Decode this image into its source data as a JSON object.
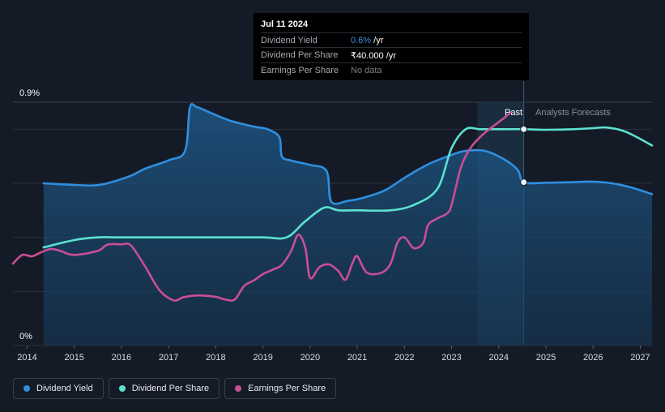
{
  "chart_data": {
    "type": "line",
    "y_axis": {
      "min_label": "0%",
      "max_label": "0.9%",
      "ylim": [
        0,
        0.9
      ]
    },
    "x_axis": {
      "ticks": [
        "2014",
        "2015",
        "2016",
        "2017",
        "2018",
        "2019",
        "2020",
        "2021",
        "2022",
        "2023",
        "2024",
        "2025",
        "2026",
        "2027"
      ],
      "xlim": [
        2013.7,
        2027.25
      ]
    },
    "regions": {
      "past_label": "Past",
      "forecast_label": "Analysts Forecasts",
      "past_shade_start": 2023.55,
      "divider_x": 2024.53
    },
    "hover_x": 2024.53,
    "series": [
      {
        "name": "Dividend Yield",
        "color": "#2f8fdf",
        "area": true,
        "points": [
          [
            2014.35,
            0.6
          ],
          [
            2015.0,
            0.594
          ],
          [
            2015.4,
            0.592
          ],
          [
            2015.7,
            0.6
          ],
          [
            2016.2,
            0.628
          ],
          [
            2016.5,
            0.654
          ],
          [
            2017.0,
            0.685
          ],
          [
            2017.35,
            0.72
          ],
          [
            2017.45,
            0.88
          ],
          [
            2017.6,
            0.882
          ],
          [
            2017.9,
            0.86
          ],
          [
            2018.3,
            0.832
          ],
          [
            2018.8,
            0.81
          ],
          [
            2019.1,
            0.8
          ],
          [
            2019.35,
            0.77
          ],
          [
            2019.4,
            0.7
          ],
          [
            2019.6,
            0.684
          ],
          [
            2020.0,
            0.668
          ],
          [
            2020.35,
            0.645
          ],
          [
            2020.45,
            0.532
          ],
          [
            2020.8,
            0.535
          ],
          [
            2021.2,
            0.55
          ],
          [
            2021.6,
            0.575
          ],
          [
            2022.0,
            0.62
          ],
          [
            2022.5,
            0.67
          ],
          [
            2023.0,
            0.705
          ],
          [
            2023.3,
            0.72
          ],
          [
            2023.7,
            0.72
          ],
          [
            2024.1,
            0.69
          ],
          [
            2024.4,
            0.65
          ],
          [
            2024.53,
            0.604
          ],
          [
            2025.0,
            0.602
          ],
          [
            2025.5,
            0.604
          ],
          [
            2026.0,
            0.606
          ],
          [
            2026.4,
            0.6
          ],
          [
            2026.8,
            0.585
          ],
          [
            2027.25,
            0.56
          ]
        ]
      },
      {
        "name": "Dividend Per Share",
        "color": "#5ce1d0",
        "area": false,
        "points": [
          [
            2014.35,
            0.363
          ],
          [
            2015.0,
            0.39
          ],
          [
            2015.5,
            0.4
          ],
          [
            2016.0,
            0.4
          ],
          [
            2017.0,
            0.4
          ],
          [
            2018.0,
            0.4
          ],
          [
            2019.0,
            0.4
          ],
          [
            2019.5,
            0.4
          ],
          [
            2019.9,
            0.46
          ],
          [
            2020.3,
            0.51
          ],
          [
            2020.6,
            0.5
          ],
          [
            2021.0,
            0.5
          ],
          [
            2021.7,
            0.5
          ],
          [
            2022.2,
            0.52
          ],
          [
            2022.7,
            0.58
          ],
          [
            2023.0,
            0.73
          ],
          [
            2023.3,
            0.8
          ],
          [
            2023.6,
            0.8
          ],
          [
            2024.0,
            0.8
          ],
          [
            2024.53,
            0.8
          ],
          [
            2025.0,
            0.798
          ],
          [
            2025.6,
            0.8
          ],
          [
            2026.0,
            0.804
          ],
          [
            2026.3,
            0.806
          ],
          [
            2026.7,
            0.79
          ],
          [
            2027.25,
            0.74
          ]
        ]
      },
      {
        "name": "Earnings Per Share",
        "color": "#c94e96",
        "area": false,
        "points": [
          [
            2013.7,
            0.303
          ],
          [
            2013.9,
            0.335
          ],
          [
            2014.1,
            0.33
          ],
          [
            2014.3,
            0.345
          ],
          [
            2014.5,
            0.357
          ],
          [
            2014.7,
            0.35
          ],
          [
            2015.0,
            0.335
          ],
          [
            2015.5,
            0.35
          ],
          [
            2015.7,
            0.373
          ],
          [
            2016.0,
            0.374
          ],
          [
            2016.2,
            0.37
          ],
          [
            2016.5,
            0.293
          ],
          [
            2016.8,
            0.206
          ],
          [
            2017.1,
            0.167
          ],
          [
            2017.3,
            0.178
          ],
          [
            2017.5,
            0.184
          ],
          [
            2017.7,
            0.185
          ],
          [
            2018.0,
            0.18
          ],
          [
            2018.2,
            0.17
          ],
          [
            2018.4,
            0.17
          ],
          [
            2018.6,
            0.22
          ],
          [
            2018.8,
            0.24
          ],
          [
            2019.0,
            0.264
          ],
          [
            2019.2,
            0.28
          ],
          [
            2019.4,
            0.298
          ],
          [
            2019.6,
            0.35
          ],
          [
            2019.75,
            0.41
          ],
          [
            2019.9,
            0.36
          ],
          [
            2020.0,
            0.25
          ],
          [
            2020.2,
            0.29
          ],
          [
            2020.4,
            0.3
          ],
          [
            2020.6,
            0.275
          ],
          [
            2020.75,
            0.243
          ],
          [
            2020.9,
            0.305
          ],
          [
            2021.0,
            0.33
          ],
          [
            2021.2,
            0.27
          ],
          [
            2021.5,
            0.268
          ],
          [
            2021.7,
            0.3
          ],
          [
            2021.85,
            0.38
          ],
          [
            2022.0,
            0.4
          ],
          [
            2022.2,
            0.36
          ],
          [
            2022.4,
            0.38
          ],
          [
            2022.5,
            0.445
          ],
          [
            2022.7,
            0.47
          ],
          [
            2022.9,
            0.488
          ],
          [
            2023.0,
            0.52
          ],
          [
            2023.2,
            0.66
          ],
          [
            2023.4,
            0.73
          ],
          [
            2023.6,
            0.77
          ],
          [
            2023.8,
            0.8
          ],
          [
            2024.1,
            0.84
          ],
          [
            2024.25,
            0.862
          ]
        ]
      }
    ],
    "markers": [
      {
        "series": "Dividend Per Share",
        "x": 2024.53,
        "y": 0.8
      },
      {
        "series": "Dividend Yield",
        "x": 2024.53,
        "y": 0.604
      }
    ]
  },
  "tooltip": {
    "date": "Jul 11 2024",
    "rows": [
      {
        "key": "Dividend Yield",
        "value": "0.6%",
        "suffix": " /yr"
      },
      {
        "key": "Dividend Per Share",
        "value": "₹40.000",
        "suffix": " /yr"
      },
      {
        "key": "Earnings Per Share",
        "value": "No data",
        "suffix": ""
      }
    ]
  },
  "legend": [
    {
      "label": "Dividend Yield",
      "color": "#2f8fdf"
    },
    {
      "label": "Dividend Per Share",
      "color": "#5ce1d0"
    },
    {
      "label": "Earnings Per Share",
      "color": "#c94e96"
    }
  ]
}
